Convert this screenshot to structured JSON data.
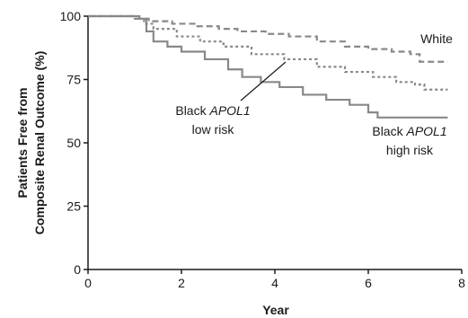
{
  "chart_data": {
    "type": "line",
    "xlabel": "Year",
    "ylabel": [
      "Patients Free from",
      "Composite Renal Outcome (%)"
    ],
    "xlim": [
      0,
      8
    ],
    "ylim": [
      0,
      100
    ],
    "x_ticks": [
      0,
      2,
      4,
      6,
      8
    ],
    "y_ticks": [
      0,
      25,
      50,
      75,
      100
    ],
    "x_tick_labels": [
      "0",
      "2",
      "4",
      "6",
      "8"
    ],
    "y_tick_labels": [
      "0",
      "25",
      "50",
      "75",
      "100"
    ],
    "grid": false,
    "legend": "none",
    "series": [
      {
        "name": "White",
        "style": "dashed",
        "color": "#888888",
        "x": [
          0,
          0.5,
          1.0,
          1.3,
          1.8,
          2.3,
          2.8,
          3.2,
          3.8,
          4.3,
          4.9,
          5.5,
          6.0,
          6.5,
          6.9,
          7.1,
          7.5,
          7.7
        ],
        "y": [
          100,
          100,
          99,
          98,
          97,
          96,
          95,
          94,
          93,
          92,
          90,
          88,
          87,
          86,
          85,
          82,
          82,
          82
        ]
      },
      {
        "name": "Black APOL1 low risk",
        "style": "dotted",
        "color": "#888888",
        "x": [
          0,
          0.5,
          1.0,
          1.2,
          1.4,
          1.9,
          2.4,
          2.9,
          3.5,
          4.2,
          4.9,
          5.5,
          6.1,
          6.6,
          7.0,
          7.2,
          7.7
        ],
        "y": [
          100,
          100,
          99,
          97,
          95,
          92,
          90,
          88,
          85,
          83,
          80,
          78,
          76,
          74,
          73,
          71,
          71
        ]
      },
      {
        "name": "Black APOL1 high risk",
        "style": "solid",
        "color": "#888888",
        "x": [
          0,
          0.5,
          1.1,
          1.25,
          1.4,
          1.7,
          2.0,
          2.5,
          3.0,
          3.3,
          3.7,
          4.1,
          4.6,
          5.1,
          5.6,
          6.0,
          6.2,
          7.0,
          7.7
        ],
        "y": [
          100,
          100,
          99,
          94,
          90,
          88,
          86,
          83,
          79,
          76,
          74,
          72,
          69,
          67,
          65,
          62,
          60,
          60,
          60
        ]
      }
    ],
    "annotations": [
      {
        "id": "white",
        "lines": [
          {
            "parts": [
              {
                "text": "White",
                "italic": false
              }
            ]
          }
        ]
      },
      {
        "id": "low",
        "lines": [
          {
            "parts": [
              {
                "text": "Black ",
                "italic": false
              },
              {
                "text": "APOL1",
                "italic": true
              }
            ]
          },
          {
            "parts": [
              {
                "text": "low risk",
                "italic": false
              }
            ]
          }
        ]
      },
      {
        "id": "high",
        "lines": [
          {
            "parts": [
              {
                "text": "Black ",
                "italic": false
              },
              {
                "text": "APOL1",
                "italic": true
              }
            ]
          },
          {
            "parts": [
              {
                "text": "high risk",
                "italic": false
              }
            ]
          }
        ]
      }
    ]
  }
}
